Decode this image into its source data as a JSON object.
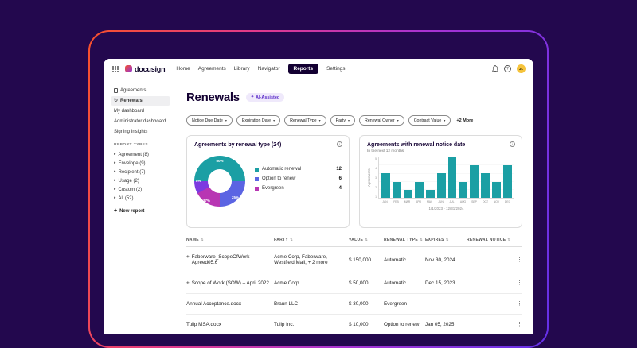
{
  "nav": {
    "brand": "docusign",
    "items": [
      "Home",
      "Agreements",
      "Library",
      "Navigator",
      "Reports",
      "Settings"
    ],
    "active_item": "Reports",
    "avatar_initials": "JL"
  },
  "sidebar": {
    "agreements": "Agreements",
    "renewals": "Renewals",
    "items": [
      "My dashboard",
      "Administrator dashboard",
      "Signing Insights"
    ],
    "section_title": "REPORT TYPES",
    "report_types": [
      "Agreement (8)",
      "Envelope (9)",
      "Recipient (7)",
      "Usage (2)",
      "Custom (2)",
      "All (52)"
    ],
    "new_report": "New report"
  },
  "page": {
    "title": "Renewals",
    "ai_badge": "AI-Assisted",
    "filters": [
      "Notice Due Date",
      "Expiration Date",
      "Renewal Type",
      "Party",
      "Renewal Owner",
      "Contract Value"
    ],
    "more_filters": "+2 More"
  },
  "chart_data": [
    {
      "type": "pie",
      "title": "Agreements by renewal type (24)",
      "total": 24,
      "legend_position": "right",
      "slices": [
        {
          "label": "Automatic renewal",
          "value": 12,
          "pct": 50,
          "pct_label": "50%",
          "color": "#1B9FA4"
        },
        {
          "label": "Option to renew",
          "value": 6,
          "pct": 25,
          "pct_label": "25%",
          "color": "#5B64E3"
        },
        {
          "label": "Evergreen",
          "value": 4,
          "pct": 17,
          "pct_label": "17%",
          "color": "#B836B3"
        },
        {
          "label": "",
          "value": 2,
          "pct": 8,
          "pct_label": "8%",
          "color": "#7C3BE0"
        }
      ]
    },
    {
      "type": "bar",
      "title": "Agreements with renewal notice date",
      "subtitle": "In the next 12 months",
      "ylabel": "Agreements",
      "categories": [
        "JAN",
        "FEB",
        "MAR",
        "APR",
        "MAY",
        "JUN",
        "JUL",
        "AUG",
        "SEP",
        "OCT",
        "NOV",
        "DEC"
      ],
      "values": [
        3,
        2,
        1,
        2,
        1,
        3,
        5,
        2,
        4,
        3,
        2,
        4
      ],
      "ylim": [
        0,
        5
      ],
      "grid": true,
      "bar_color": "#1B9FA4",
      "footer": "1/1/2023 - 12/31/2024"
    }
  ],
  "table": {
    "columns": [
      "NAME",
      "PARTY",
      "VALUE",
      "RENEWAL TYPE",
      "EXPIRES",
      "RENEWAL NOTICE"
    ],
    "rows": [
      {
        "expand": "+",
        "name": "Faberware_ScopeOfWork-Agreed05.6",
        "party": "Acme Corp, Faberware, Westfield Mall,",
        "party_link": "+ 2 more",
        "value": "$ 150,000",
        "renewal_type": "Automatic",
        "expires": "Nov 30, 2024",
        "renewal_notice": ""
      },
      {
        "expand": "+",
        "name": "Scope of Work (SOW) – April 2022",
        "party": "Acme Corp.",
        "party_link": "",
        "value": "$ 50,000",
        "renewal_type": "Automatic",
        "expires": "Dec 15, 2023",
        "renewal_notice": ""
      },
      {
        "expand": "",
        "name": "Annual Acceptance.docx",
        "party": "Braun LLC",
        "party_link": "",
        "value": "$ 30,000",
        "renewal_type": "Evergreen",
        "expires": "",
        "renewal_notice": ""
      },
      {
        "expand": "",
        "name": "Tulip MSA.docx",
        "party": "Tulip Inc.",
        "party_link": "",
        "value": "$ 10,000",
        "renewal_type": "Option to renew",
        "expires": "Jan 05, 2025",
        "renewal_notice": ""
      }
    ]
  }
}
